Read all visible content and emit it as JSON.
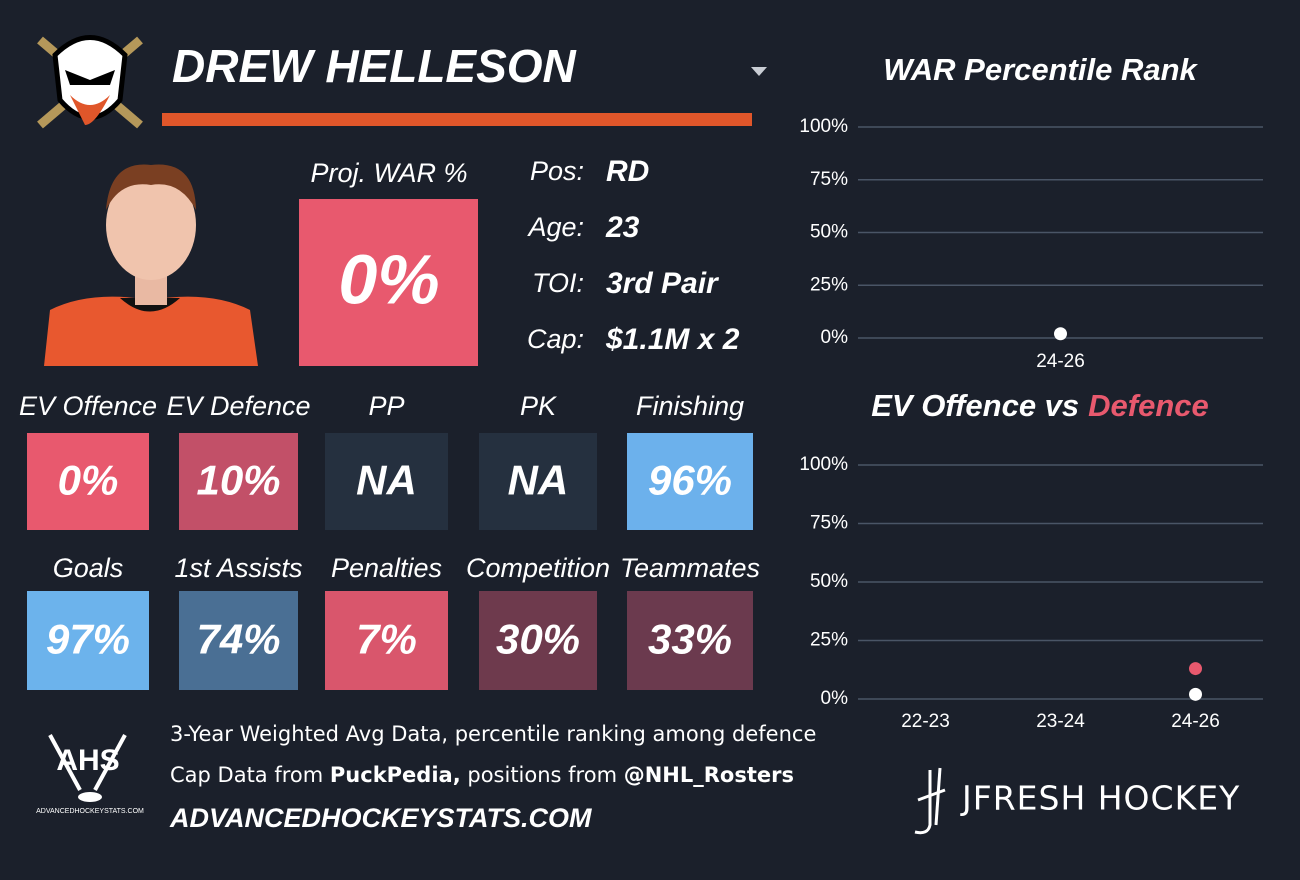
{
  "player": {
    "name": "DREW HELLESON",
    "proj_war_label": "Proj. WAR %",
    "proj_war": "0%",
    "proj_war_color": "#e8596e",
    "info": [
      {
        "label": "Pos:",
        "value": "RD"
      },
      {
        "label": "Age:",
        "value": "23"
      },
      {
        "label": "TOI:",
        "value": "3rd Pair"
      },
      {
        "label": "Cap:",
        "value": "$1.1M x 2"
      }
    ]
  },
  "tiles": [
    {
      "label": "EV Offence",
      "value": "0%",
      "color": "#e8596e"
    },
    {
      "label": "EV Defence",
      "value": "10%",
      "color": "#c25068"
    },
    {
      "label": "PP",
      "value": "NA",
      "color": "#25303f"
    },
    {
      "label": "PK",
      "value": "NA",
      "color": "#25303f"
    },
    {
      "label": "Finishing",
      "value": "96%",
      "color": "#6cb1ec"
    },
    {
      "label": "Goals",
      "value": "97%",
      "color": "#6cb3ec"
    },
    {
      "label": "1st Assists",
      "value": "74%",
      "color": "#4a6f94"
    },
    {
      "label": "Penalties",
      "value": "7%",
      "color": "#d9566c"
    },
    {
      "label": "Competition",
      "value": "30%",
      "color": "#6e3a4d"
    },
    {
      "label": "Teammates",
      "value": "33%",
      "color": "#6b3a4e"
    }
  ],
  "footer": {
    "logo_text": "AHS",
    "logo_subtext": "ADVANCEDHOCKEYSTATS.COM",
    "lines": [
      [
        {
          "text": "3-Year Weighted Avg Data, percentile ranking among defence"
        }
      ],
      [
        {
          "text": "Cap Data from "
        },
        {
          "text": "PuckPedia,",
          "bold": true
        },
        {
          "text": " positions from "
        },
        {
          "text": "@NHL_Rosters",
          "bold": true
        }
      ]
    ],
    "site": "ADVANCEDHOCKEYSTATS.COM",
    "brand": "JFRESH HOCKEY"
  },
  "chart_data": [
    {
      "type": "scatter",
      "title": "WAR Percentile Rank",
      "categories": [
        "24-26"
      ],
      "series": [
        {
          "color": "#ffffff",
          "values": [
            2
          ]
        }
      ],
      "ylim": [
        0,
        100
      ],
      "yticks": [
        {
          "value": 0,
          "label": "0%"
        },
        {
          "value": 25,
          "label": "25%"
        },
        {
          "value": 50,
          "label": "50%"
        },
        {
          "value": 75,
          "label": "75%"
        },
        {
          "value": 100,
          "label": "100%"
        }
      ],
      "grid": true
    },
    {
      "type": "scatter",
      "title": "EV Offence vs",
      "title_highlight": "Defence",
      "title_highlight_color": "#e8596e",
      "categories": [
        "22-23",
        "23-24",
        "24-26"
      ],
      "series": [
        {
          "color": "#e8596e",
          "values": [
            null,
            null,
            13
          ]
        },
        {
          "color": "#ffffff",
          "values": [
            null,
            null,
            2
          ]
        }
      ],
      "ylim": [
        0,
        100
      ],
      "yticks": [
        {
          "value": 0,
          "label": "0%"
        },
        {
          "value": 25,
          "label": "25%"
        },
        {
          "value": 50,
          "label": "50%"
        },
        {
          "value": 75,
          "label": "75%"
        },
        {
          "value": 100,
          "label": "100%"
        }
      ],
      "grid": true
    }
  ]
}
